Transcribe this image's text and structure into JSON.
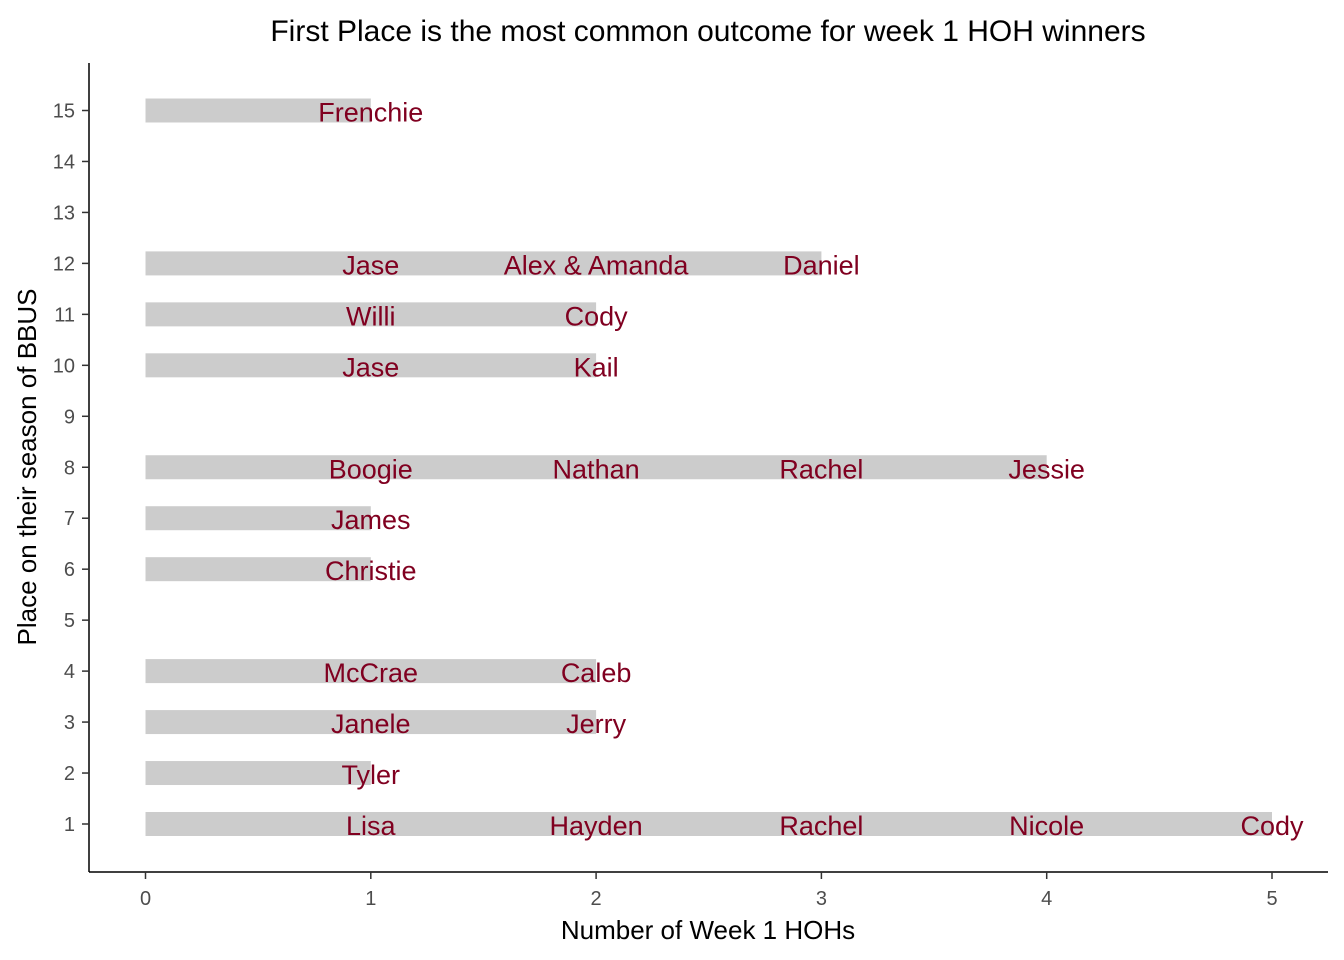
{
  "chart_data": {
    "type": "bar",
    "orientation": "horizontal",
    "title": "First Place is the most common outcome for week 1 HOH winners",
    "xlabel": "Number of Week 1 HOHs",
    "ylabel": "Place on their season of BBUS",
    "xlim": [
      0,
      5
    ],
    "ylim": [
      1,
      15
    ],
    "x_ticks": [
      "0",
      "1",
      "2",
      "3",
      "4",
      "5"
    ],
    "y_ticks": [
      "1",
      "2",
      "3",
      "4",
      "5",
      "6",
      "7",
      "8",
      "9",
      "10",
      "11",
      "12",
      "13",
      "14",
      "15"
    ],
    "grid": false,
    "bar_color": "#cccccc",
    "label_color": "#800020",
    "rows": [
      {
        "place": 1,
        "value": 5,
        "names": [
          "Lisa",
          "Hayden",
          "Rachel",
          "Nicole",
          "Cody"
        ]
      },
      {
        "place": 2,
        "value": 1,
        "names": [
          "Tyler"
        ]
      },
      {
        "place": 3,
        "value": 2,
        "names": [
          "Janele",
          "Jerry"
        ]
      },
      {
        "place": 4,
        "value": 2,
        "names": [
          "McCrae",
          "Caleb"
        ]
      },
      {
        "place": 6,
        "value": 1,
        "names": [
          "Christie"
        ]
      },
      {
        "place": 7,
        "value": 1,
        "names": [
          "James"
        ]
      },
      {
        "place": 8,
        "value": 4,
        "names": [
          "Boogie",
          "Nathan",
          "Rachel",
          "Jessie"
        ]
      },
      {
        "place": 10,
        "value": 2,
        "names": [
          "Jase",
          "Kail"
        ]
      },
      {
        "place": 11,
        "value": 2,
        "names": [
          "Willi",
          "Cody"
        ]
      },
      {
        "place": 12,
        "value": 3,
        "names": [
          "Jase",
          "Alex & Amanda",
          "Daniel"
        ]
      },
      {
        "place": 15,
        "value": 1,
        "names": [
          "Frenchie"
        ]
      }
    ]
  }
}
